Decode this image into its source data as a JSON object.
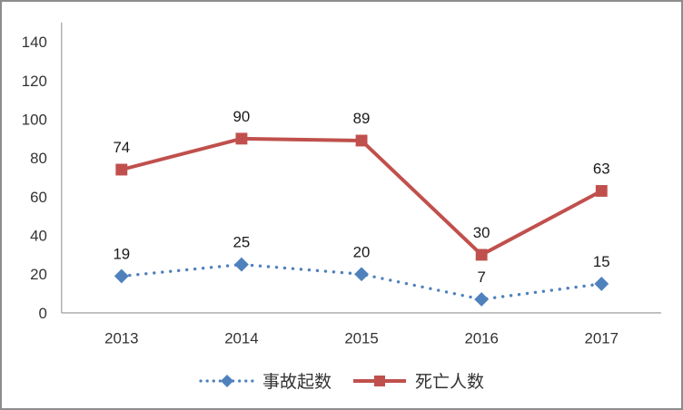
{
  "chart_data": {
    "type": "line",
    "title": "",
    "xlabel": "",
    "ylabel": "",
    "categories": [
      "2013",
      "2014",
      "2015",
      "2016",
      "2017"
    ],
    "series": [
      {
        "name": "事故起数",
        "values": [
          19,
          25,
          20,
          7,
          15
        ],
        "color": "#4F81BD",
        "line_style": "dotted",
        "marker": "diamond"
      },
      {
        "name": "死亡人数",
        "values": [
          74,
          90,
          89,
          30,
          63
        ],
        "color": "#C0504D",
        "line_style": "solid",
        "marker": "square"
      }
    ],
    "ylim": [
      0,
      150
    ],
    "yticks": [
      0,
      20,
      40,
      60,
      80,
      100,
      120,
      140
    ],
    "grid": false,
    "data_labels": true,
    "legend_position": "bottom"
  },
  "styles": {
    "axis_color": "#A6A6A6",
    "tick_label_color": "#333333",
    "data_label_color": "#1A1A1A",
    "frame_border_color": "#8C8C8C",
    "background": "#FFFFFF"
  }
}
